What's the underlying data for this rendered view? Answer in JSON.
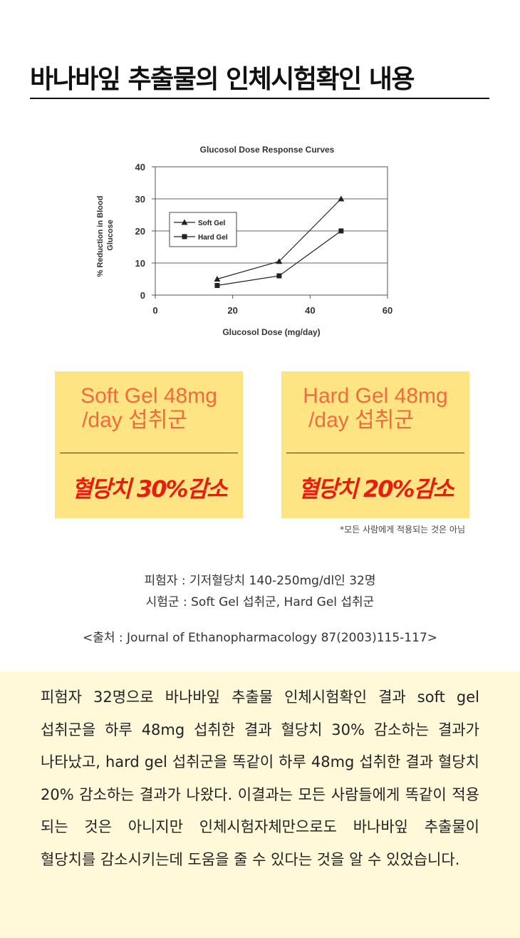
{
  "heading": "바나바잎 추출물의 인체시험확인 내용",
  "chart_data": {
    "type": "line",
    "title": "Glucosol Dose Response Curves",
    "xlabel": "Glucosol Dose (mg/day)",
    "ylabel": "% Reduction in Blood Glucose",
    "xlim": [
      0,
      60
    ],
    "ylim": [
      0,
      40
    ],
    "xticks": [
      0,
      20,
      40,
      60
    ],
    "yticks": [
      0,
      10,
      20,
      30,
      40
    ],
    "legend_position": "upper-left inside",
    "series": [
      {
        "name": "Soft Gel",
        "marker": "triangle",
        "x": [
          16,
          32,
          48
        ],
        "y": [
          5,
          10.5,
          30
        ]
      },
      {
        "name": "Hard Gel",
        "marker": "square",
        "x": [
          16,
          32,
          48
        ],
        "y": [
          3,
          6,
          20
        ]
      }
    ]
  },
  "cards": [
    {
      "label_line1": "Soft Gel 48mg",
      "label_line2": "/day 섭취군",
      "result": "혈당치 30%감소"
    },
    {
      "label_line1": "Hard Gel 48mg",
      "label_line2": "/day 섭취군",
      "result": "혈당치 20%감소"
    }
  ],
  "note": "*모든 사람에게 적용되는 것은 아님",
  "info": {
    "subjects": "피험자 : 기저혈당치 140-250mg/dl인 32명",
    "groups": "시험군 : Soft Gel 섭취군, Hard Gel 섭취군",
    "source": "<출처 : Journal of Ethanopharmacology 87(2003)115-117>"
  },
  "summary": "피험자 32명으로 바나바잎 추출물 인체시험확인 결과 soft gel 섭취군을 하루 48mg 섭취한 결과 혈당치 30% 감소하는 결과가 나타났고, hard gel 섭취군을 똑같이 하루 48mg 섭취한 결과 혈당치 20% 감소하는 결과가 나왔다. 이결과는 모든 사람들에게 똑같이 적용 되는 것은 아니지만 인체시험자체만으로도 바나바잎 추출물이 혈당치를 감소시키는데 도움을 줄 수 있다는 것을 알 수 있었습니다."
}
